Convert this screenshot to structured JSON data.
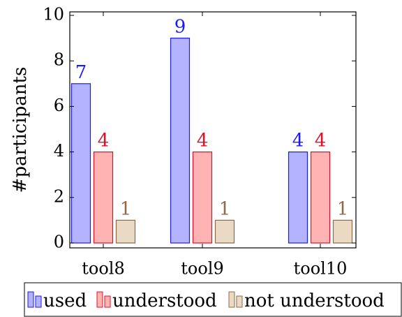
{
  "chart_data": {
    "type": "bar",
    "categories": [
      "tool8",
      "tool9",
      "tool10"
    ],
    "series": [
      {
        "name": "used",
        "values": [
          7,
          9,
          4
        ],
        "fill": "#b3b3ff",
        "stroke": "#1a1aff",
        "label_color": "#1a1aff"
      },
      {
        "name": "understood",
        "values": [
          4,
          4,
          4
        ],
        "fill": "#ffb3b3",
        "stroke": "#e0102a",
        "label_color": "#e0102a"
      },
      {
        "name": "not understood",
        "values": [
          1,
          1,
          1
        ],
        "fill": "#ead9c3",
        "stroke": "#8c6a4a",
        "label_color": "#8c6a4a"
      }
    ],
    "xlabel": "",
    "ylabel": "#participants",
    "ylim": [
      0,
      10
    ],
    "yticks": [
      0,
      2,
      4,
      6,
      8,
      10
    ],
    "grid": false,
    "legend_position": "bottom"
  }
}
